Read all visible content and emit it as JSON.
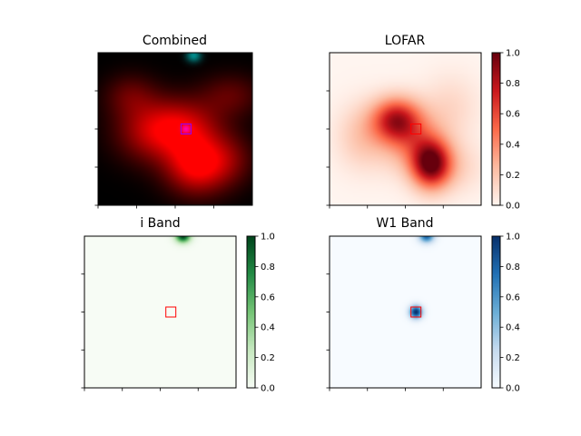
{
  "chart_data": [
    {
      "type": "heatmap",
      "title": "Combined",
      "colormap": "red-composite",
      "colorbar": false,
      "x_ticks_labeled": false,
      "y_ticks_labeled": false,
      "blobs": [
        {
          "x": 0.55,
          "y": 0.49,
          "sx": 0.17,
          "sy": 0.13,
          "amp": 0.75,
          "channel": "red"
        },
        {
          "x": 0.64,
          "y": 0.74,
          "sx": 0.14,
          "sy": 0.13,
          "amp": 1.0,
          "channel": "red"
        },
        {
          "x": 0.33,
          "y": 0.52,
          "sx": 0.16,
          "sy": 0.14,
          "amp": 0.55,
          "channel": "red"
        },
        {
          "x": 0.21,
          "y": 0.28,
          "sx": 0.12,
          "sy": 0.1,
          "amp": 0.35,
          "channel": "red"
        },
        {
          "x": 0.86,
          "y": 0.28,
          "sx": 0.14,
          "sy": 0.1,
          "amp": 0.35,
          "channel": "red"
        },
        {
          "x": 0.85,
          "y": 0.7,
          "sx": 0.12,
          "sy": 0.12,
          "amp": 0.35,
          "channel": "red"
        },
        {
          "x": 0.62,
          "y": 0.02,
          "sx": 0.035,
          "sy": 0.03,
          "amp": 0.7,
          "channel": "cyan"
        },
        {
          "x": 0.57,
          "y": 0.5,
          "sx": 0.02,
          "sy": 0.02,
          "amp": 0.7,
          "channel": "blue"
        }
      ],
      "marker": {
        "x": 0.57,
        "y": 0.5,
        "shape": "square",
        "color": "#8b00ff"
      }
    },
    {
      "type": "heatmap",
      "title": "LOFAR",
      "colormap": "Reds",
      "colorbar": true,
      "colorbar_range": [
        0.0,
        1.0
      ],
      "colorbar_ticks": [
        "0.0",
        "0.2",
        "0.4",
        "0.6",
        "0.8",
        "1.0"
      ],
      "x_ticks_labeled": false,
      "y_ticks_labeled": false,
      "blobs": [
        {
          "x": 0.44,
          "y": 0.44,
          "sx": 0.11,
          "sy": 0.1,
          "amp": 0.72
        },
        {
          "x": 0.67,
          "y": 0.73,
          "sx": 0.09,
          "sy": 0.11,
          "amp": 0.95
        },
        {
          "x": 0.55,
          "y": 0.58,
          "sx": 0.14,
          "sy": 0.14,
          "amp": 0.35
        },
        {
          "x": 0.22,
          "y": 0.55,
          "sx": 0.12,
          "sy": 0.15,
          "amp": 0.2
        },
        {
          "x": 0.8,
          "y": 0.35,
          "sx": 0.13,
          "sy": 0.15,
          "amp": 0.12
        },
        {
          "x": 0.85,
          "y": 0.75,
          "sx": 0.12,
          "sy": 0.12,
          "amp": 0.12
        }
      ],
      "marker": {
        "x": 0.57,
        "y": 0.5,
        "shape": "square",
        "color": "#ff0000"
      }
    },
    {
      "type": "heatmap",
      "title": "i Band",
      "colormap": "Greens",
      "colorbar": true,
      "colorbar_range": [
        0.0,
        1.0
      ],
      "colorbar_ticks": [
        "0.0",
        "0.2",
        "0.4",
        "0.6",
        "0.8",
        "1.0"
      ],
      "x_ticks_labeled": false,
      "y_ticks_labeled": false,
      "blobs": [
        {
          "x": 0.65,
          "y": 0.0,
          "sx": 0.035,
          "sy": 0.03,
          "amp": 1.0
        }
      ],
      "marker": {
        "x": 0.57,
        "y": 0.5,
        "shape": "square",
        "color": "#ff0000"
      }
    },
    {
      "type": "heatmap",
      "title": "W1 Band",
      "colormap": "Blues",
      "colorbar": true,
      "colorbar_range": [
        0.0,
        1.0
      ],
      "colorbar_ticks": [
        "0.0",
        "0.2",
        "0.4",
        "0.6",
        "0.8",
        "1.0"
      ],
      "x_ticks_labeled": false,
      "y_ticks_labeled": false,
      "blobs": [
        {
          "x": 0.64,
          "y": 0.0,
          "sx": 0.035,
          "sy": 0.03,
          "amp": 0.8
        },
        {
          "x": 0.57,
          "y": 0.5,
          "sx": 0.03,
          "sy": 0.03,
          "amp": 1.0
        }
      ],
      "marker": {
        "x": 0.57,
        "y": 0.5,
        "shape": "square",
        "color": "#ff0000"
      }
    }
  ]
}
